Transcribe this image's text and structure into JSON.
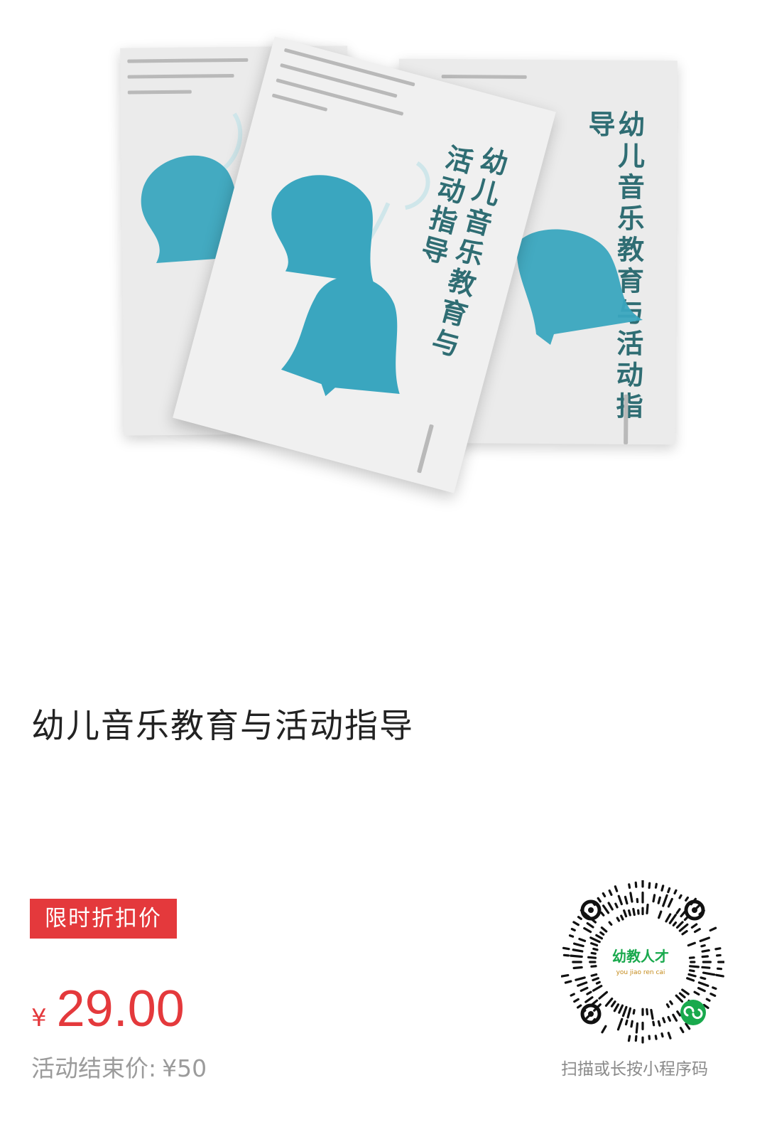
{
  "product": {
    "cover_title_line1": "幼儿音乐教育与",
    "cover_title_line2": "活动指导",
    "title": "幼儿音乐教育与活动指导"
  },
  "promo": {
    "badge_label": "限时折扣价",
    "currency_symbol": "¥",
    "price": "29.00",
    "end_price_label": "活动结束价:",
    "end_price_value": "¥50"
  },
  "mini_program": {
    "logo_text": "幼教人才",
    "logo_pinyin": "you jiao ren cai",
    "caption": "扫描或长按小程序码"
  },
  "colors": {
    "accent_red": "#e4393c",
    "bell_blue": "#3aa6bf",
    "muted_gray": "#9b9b9b",
    "mini_program_green": "#19a94d"
  }
}
